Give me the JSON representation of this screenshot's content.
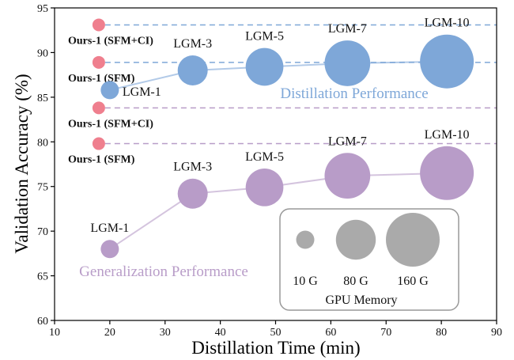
{
  "chart_data": {
    "type": "scatter",
    "xlabel": "Distillation Time (min)",
    "ylabel": "Validation Accuracy (%)",
    "xlim": [
      10,
      90
    ],
    "ylim": [
      60,
      95
    ],
    "xticks": [
      10,
      20,
      30,
      40,
      50,
      60,
      70,
      80,
      90
    ],
    "yticks": [
      60,
      65,
      70,
      75,
      80,
      85,
      90,
      95
    ],
    "grid": false,
    "series": [
      {
        "name": "Distillation Performance",
        "color": "#7ea7d8",
        "points": [
          {
            "label": "LGM-1",
            "x": 20,
            "y": 85.8,
            "memory_gb": 10
          },
          {
            "label": "LGM-3",
            "x": 35,
            "y": 88.0,
            "memory_gb": 40
          },
          {
            "label": "LGM-5",
            "x": 48,
            "y": 88.4,
            "memory_gb": 70
          },
          {
            "label": "LGM-7",
            "x": 63,
            "y": 88.8,
            "memory_gb": 110
          },
          {
            "label": "LGM-10",
            "x": 81,
            "y": 89.0,
            "memory_gb": 160
          }
        ]
      },
      {
        "name": "Generalization Performance",
        "color": "#b89cc8",
        "points": [
          {
            "label": "LGM-1",
            "x": 20,
            "y": 68.0,
            "memory_gb": 10
          },
          {
            "label": "LGM-3",
            "x": 35,
            "y": 74.2,
            "memory_gb": 40
          },
          {
            "label": "LGM-5",
            "x": 48,
            "y": 74.9,
            "memory_gb": 70
          },
          {
            "label": "LGM-7",
            "x": 63,
            "y": 76.2,
            "memory_gb": 110
          },
          {
            "label": "LGM-10",
            "x": 81,
            "y": 76.5,
            "memory_gb": 160
          }
        ]
      }
    ],
    "references": [
      {
        "label": "Ours-1 (SFM+CI)",
        "x": 18,
        "y": 93.1,
        "line_color": "#7ea7d8"
      },
      {
        "label": "Ours-1 (SFM)",
        "x": 18,
        "y": 88.9,
        "line_color": "#7ea7d8"
      },
      {
        "label": "Ours-1 (SFM+CI)",
        "x": 18,
        "y": 83.8,
        "line_color": "#b89cc8"
      },
      {
        "label": "Ours-1 (SFM)",
        "x": 18,
        "y": 79.8,
        "line_color": "#b89cc8"
      }
    ],
    "reference_color": "#ef7f8e",
    "size_legend": {
      "title": "GPU Memory",
      "entries": [
        {
          "label": "10 G",
          "memory_gb": 10
        },
        {
          "label": "80 G",
          "memory_gb": 80
        },
        {
          "label": "160 G",
          "memory_gb": 160
        }
      ],
      "color": "#aaaaaa",
      "placement": "bottom-right"
    }
  }
}
